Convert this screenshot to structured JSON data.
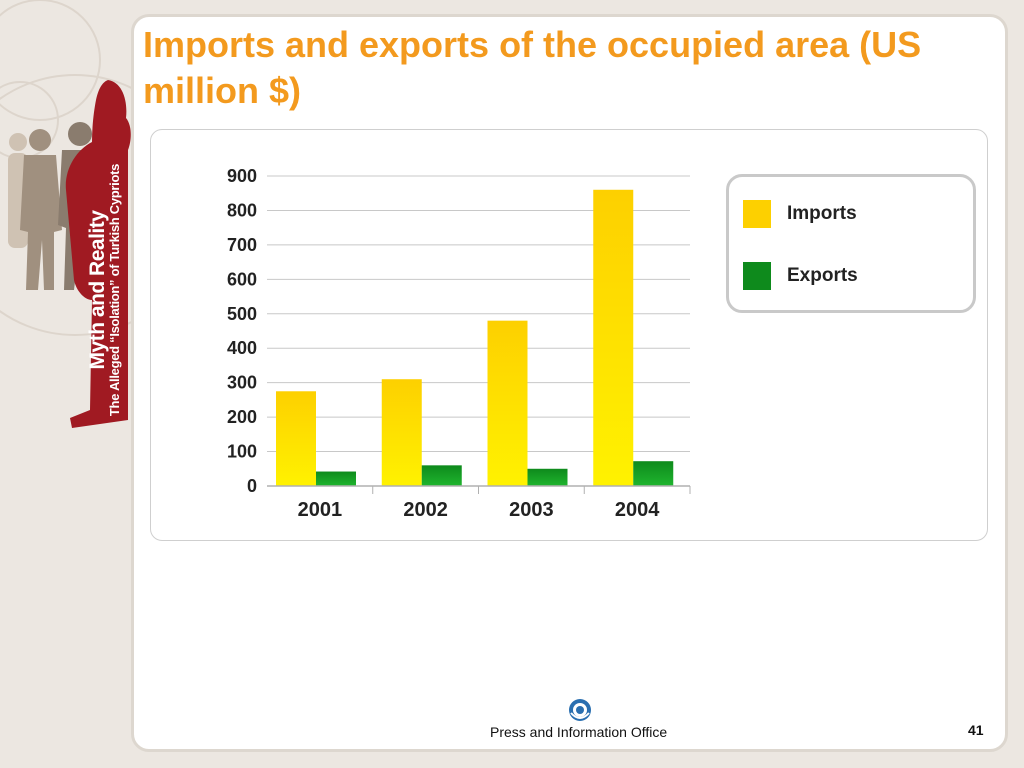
{
  "slide": {
    "title": "Imports and exports of the occupied area (US million $)",
    "footer_text": "Press and Information Office",
    "page_number": "41"
  },
  "sidebar": {
    "branding_big": "Myth and Reality",
    "branding_small": "The Alleged “Isolation” of Turkish Cypriots"
  },
  "colors": {
    "title": "#f39a1e",
    "imports_top": "#fdd000",
    "imports_bottom": "#fff200",
    "exports_top": "#0e8a1c",
    "exports_bottom": "#1fb52e",
    "sidebar_figure": "#a01a22"
  },
  "legend": {
    "imports_label": "Imports",
    "exports_label": "Exports"
  },
  "chart_data": {
    "type": "bar",
    "categories": [
      "2001",
      "2002",
      "2003",
      "2004"
    ],
    "series": [
      {
        "name": "Imports",
        "values": [
          275,
          310,
          480,
          860
        ]
      },
      {
        "name": "Exports",
        "values": [
          42,
          60,
          50,
          72
        ]
      }
    ],
    "title": "Imports and exports of the occupied area (US million $)",
    "xlabel": "",
    "ylabel": "",
    "ylim": [
      0,
      900
    ],
    "yticks": [
      0,
      100,
      200,
      300,
      400,
      500,
      600,
      700,
      800,
      900
    ],
    "grid": true,
    "legend_position": "top-right"
  }
}
